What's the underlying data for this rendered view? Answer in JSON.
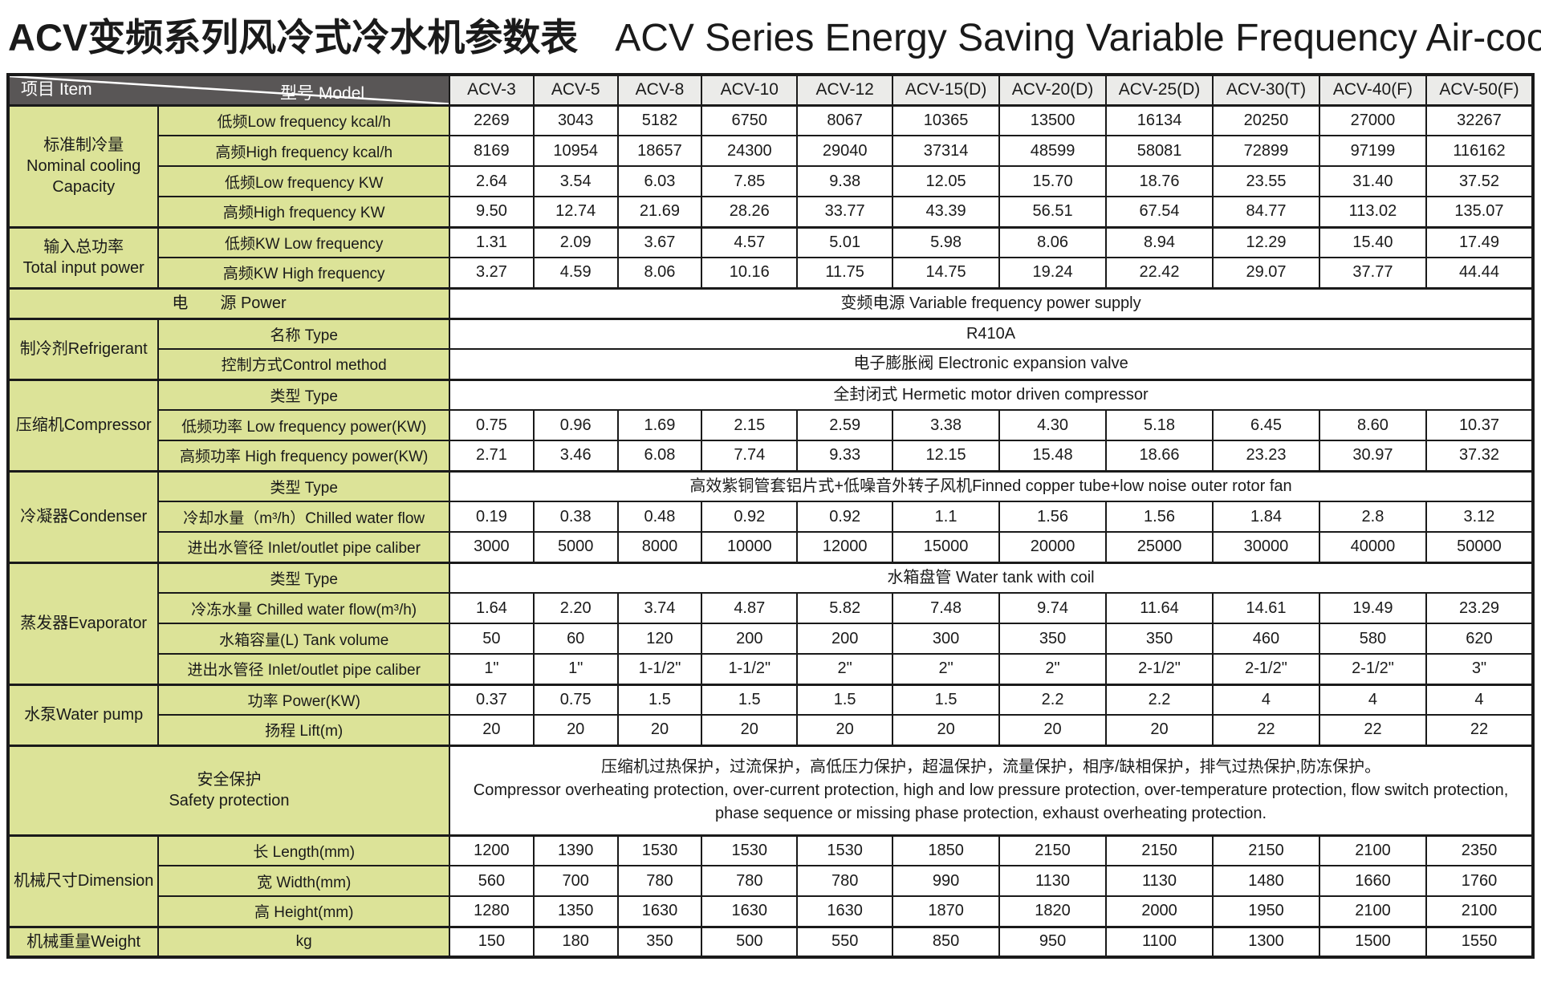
{
  "title": {
    "zh": "ACV变频系列风冷式冷水机参数表",
    "en": "ACV Series Energy Saving Variable Frequency Air-cooled Chiller"
  },
  "colors": {
    "header_bg": "#595656",
    "model_header_bg": "#ebebe9",
    "label_bg": "#dce398",
    "border": "#1a1a1a",
    "text": "#1a1a1a",
    "header_text": "#ffffff"
  },
  "table": {
    "corner": {
      "model_label": "型号  Model",
      "item_label": "项目  Item"
    },
    "models": [
      "ACV-3",
      "ACV-5",
      "ACV-8",
      "ACV-10",
      "ACV-12",
      "ACV-15(D)",
      "ACV-20(D)",
      "ACV-25(D)",
      "ACV-30(T)",
      "ACV-40(F)",
      "ACV-50(F)"
    ],
    "sections": [
      {
        "head": "标准制冷量\nNominal cooling\nCapacity",
        "rows": [
          {
            "label": "低频Low frequency  kcal/h",
            "values": [
              "2269",
              "3043",
              "5182",
              "6750",
              "8067",
              "10365",
              "13500",
              "16134",
              "20250",
              "27000",
              "32267"
            ]
          },
          {
            "label": "高频High frequency  kcal/h",
            "values": [
              "8169",
              "10954",
              "18657",
              "24300",
              "29040",
              "37314",
              "48599",
              "58081",
              "72899",
              "97199",
              "116162"
            ]
          },
          {
            "label": "低频Low frequency  KW",
            "values": [
              "2.64",
              "3.54",
              "6.03",
              "7.85",
              "9.38",
              "12.05",
              "15.70",
              "18.76",
              "23.55",
              "31.40",
              "37.52"
            ]
          },
          {
            "label": "高频High frequency  KW",
            "values": [
              "9.50",
              "12.74",
              "21.69",
              "28.26",
              "33.77",
              "43.39",
              "56.51",
              "67.54",
              "84.77",
              "113.02",
              "135.07"
            ]
          }
        ]
      },
      {
        "head": "输入总功率\nTotal input power",
        "rows": [
          {
            "label": "低频KW    Low frequency",
            "values": [
              "1.31",
              "2.09",
              "3.67",
              "4.57",
              "5.01",
              "5.98",
              "8.06",
              "8.94",
              "12.29",
              "15.40",
              "17.49"
            ]
          },
          {
            "label": "高频KW   High frequency",
            "values": [
              "3.27",
              "4.59",
              "8.06",
              "10.16",
              "11.75",
              "14.75",
              "19.24",
              "22.42",
              "29.07",
              "37.77",
              "44.44"
            ]
          }
        ]
      },
      {
        "head": "电　　源  Power",
        "wide": true,
        "rows": [
          {
            "span": "变频电源  Variable frequency power supply"
          }
        ]
      },
      {
        "head": "制冷剂Refrigerant",
        "rows": [
          {
            "label": "名称  Type",
            "span": "R410A"
          },
          {
            "label": "控制方式Control method",
            "span": "电子膨胀阀 Electronic expansion valve"
          }
        ]
      },
      {
        "head": "压缩机Compressor",
        "rows": [
          {
            "label": "类型 Type",
            "span": "全封闭式 Hermetic motor driven compressor"
          },
          {
            "label": "低频功率  Low frequency power(KW)",
            "values": [
              "0.75",
              "0.96",
              "1.69",
              "2.15",
              "2.59",
              "3.38",
              "4.30",
              "5.18",
              "6.45",
              "8.60",
              "10.37"
            ]
          },
          {
            "label": "高频功率 High frequency power(KW)",
            "values": [
              "2.71",
              "3.46",
              "6.08",
              "7.74",
              "9.33",
              "12.15",
              "15.48",
              "18.66",
              "23.23",
              "30.97",
              "37.32"
            ]
          }
        ]
      },
      {
        "head": "冷凝器Condenser",
        "rows": [
          {
            "label": "类型 Type",
            "span": "高效紫铜管套铝片式+低噪音外转子风机Finned copper tube+low noise outer rotor fan"
          },
          {
            "label": "冷却水量（m³/h）Chilled water flow",
            "values": [
              "0.19",
              "0.38",
              "0.48",
              "0.92",
              "0.92",
              "1.1",
              "1.56",
              "1.56",
              "1.84",
              "2.8",
              "3.12"
            ]
          },
          {
            "label": "进出水管径 Inlet/outlet pipe caliber",
            "values": [
              "3000",
              "5000",
              "8000",
              "10000",
              "12000",
              "15000",
              "20000",
              "25000",
              "30000",
              "40000",
              "50000"
            ]
          }
        ]
      },
      {
        "head": "蒸发器Evaporator",
        "rows": [
          {
            "label": "类型 Type",
            "span": "水箱盘管 Water tank with coil"
          },
          {
            "label": "冷冻水量 Chilled water flow(m³/h)",
            "values": [
              "1.64",
              "2.20",
              "3.74",
              "4.87",
              "5.82",
              "7.48",
              "9.74",
              "11.64",
              "14.61",
              "19.49",
              "23.29"
            ]
          },
          {
            "label": "水箱容量(L)   Tank volume",
            "values": [
              "50",
              "60",
              "120",
              "200",
              "200",
              "300",
              "350",
              "350",
              "460",
              "580",
              "620"
            ]
          },
          {
            "label": "进出水管径  Inlet/outlet pipe caliber",
            "values": [
              "1\"",
              "1\"",
              "1-1/2\"",
              "1-1/2\"",
              "2\"",
              "2\"",
              "2\"",
              "2-1/2\"",
              "2-1/2\"",
              "2-1/2\"",
              "3\""
            ]
          }
        ]
      },
      {
        "head": "水泵Water pump",
        "rows": [
          {
            "label": "功率  Power(KW)",
            "values": [
              "0.37",
              "0.75",
              "1.5",
              "1.5",
              "1.5",
              "1.5",
              "2.2",
              "2.2",
              "4",
              "4",
              "4"
            ]
          },
          {
            "label": "扬程  Lift(m)",
            "values": [
              "20",
              "20",
              "20",
              "20",
              "20",
              "20",
              "20",
              "20",
              "22",
              "22",
              "22"
            ]
          }
        ]
      },
      {
        "head": "安全保护\nSafety protection",
        "wide": true,
        "tall": true,
        "rows": [
          {
            "span": "压缩机过热保护，过流保护，高低压力保护，超温保护，流量保护，相序/缺相保护，排气过热保护,防冻保护。\nCompressor overheating protection, over-current protection, high and low pressure protection, over-temperature protection, flow switch protection, phase sequence or missing phase protection, exhaust overheating protection."
          }
        ]
      },
      {
        "head": "机械尺寸Dimension",
        "rows": [
          {
            "label": "长  Length(mm)",
            "values": [
              "1200",
              "1390",
              "1530",
              "1530",
              "1530",
              "1850",
              "2150",
              "2150",
              "2150",
              "2100",
              "2350"
            ]
          },
          {
            "label": "宽  Width(mm)",
            "values": [
              "560",
              "700",
              "780",
              "780",
              "780",
              "990",
              "1130",
              "1130",
              "1480",
              "1660",
              "1760"
            ]
          },
          {
            "label": "高  Height(mm)",
            "values": [
              "1280",
              "1350",
              "1630",
              "1630",
              "1630",
              "1870",
              "1820",
              "2000",
              "1950",
              "2100",
              "2100"
            ]
          }
        ]
      },
      {
        "head": "机械重量Weight",
        "rows": [
          {
            "label": "kg",
            "values": [
              "150",
              "180",
              "350",
              "500",
              "550",
              "850",
              "950",
              "1100",
              "1300",
              "1500",
              "1550"
            ]
          }
        ]
      }
    ]
  }
}
